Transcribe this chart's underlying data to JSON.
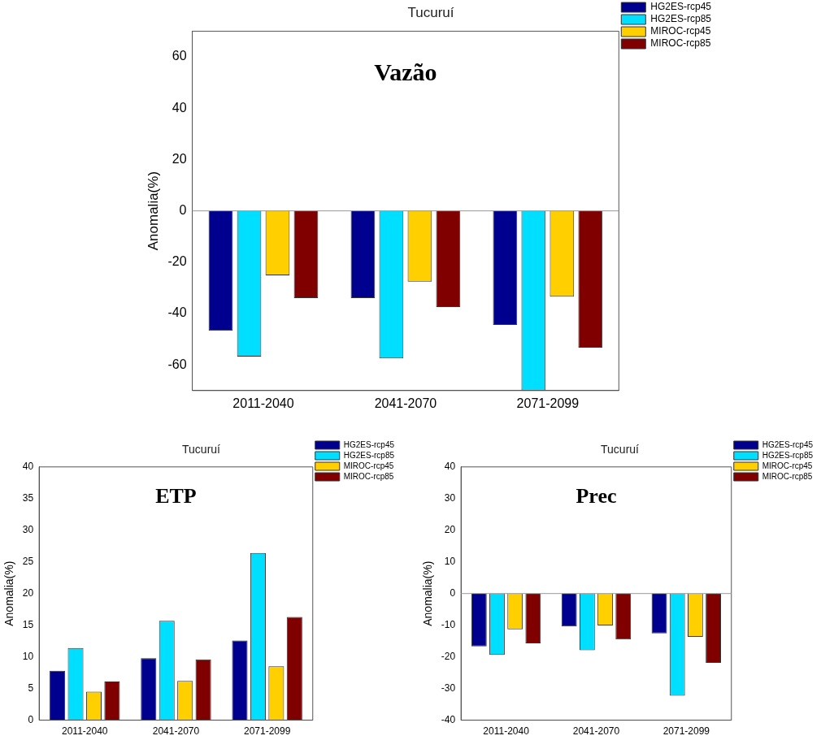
{
  "chart_data": [
    {
      "type": "bar",
      "title": "Tucuruí",
      "ylabel": "Anomalia(%)",
      "annotations": [
        "Vazão"
      ],
      "categories": [
        "2011-2040",
        "2041-2070",
        "2071-2099"
      ],
      "series": [
        {
          "name": "HG2ES-rcp45",
          "color": "#00008f",
          "values": [
            -46.7,
            -34,
            -44.4
          ]
        },
        {
          "name": "HG2ES-rcp85",
          "color": "#00dfff",
          "values": [
            -56.8,
            -57.5,
            -70
          ]
        },
        {
          "name": "MIROC-rcp45",
          "color": "#ffcf00",
          "values": [
            -25.1,
            -27.6,
            -33.4
          ]
        },
        {
          "name": "MIROC-rcp85",
          "color": "#800000",
          "values": [
            -34,
            -37.5,
            -53.3
          ]
        }
      ],
      "ylim": [
        -70,
        70
      ],
      "yticks": [
        -60,
        -40,
        -20,
        0,
        20,
        40,
        60
      ],
      "ref_lines": [
        {
          "axis": "y",
          "value": 0,
          "color": "#999999"
        }
      ],
      "grid": false,
      "legend": "top right"
    },
    {
      "type": "bar",
      "title": "Tucuruí",
      "ylabel": "Anomalia(%)",
      "annotations": [
        "ETP"
      ],
      "categories": [
        "2011-2040",
        "2041-2070",
        "2071-2099"
      ],
      "series": [
        {
          "name": "HG2ES-rcp45",
          "color": "#00008f",
          "values": [
            7.8,
            9.8,
            12.6
          ]
        },
        {
          "name": "HG2ES-rcp85",
          "color": "#00dfff",
          "values": [
            11.4,
            15.7,
            26.4
          ]
        },
        {
          "name": "MIROC-rcp45",
          "color": "#ffcf00",
          "values": [
            4.5,
            6.2,
            8.5
          ]
        },
        {
          "name": "MIROC-rcp85",
          "color": "#800000",
          "values": [
            6.1,
            9.6,
            16.3
          ]
        }
      ],
      "ylim": [
        0,
        40
      ],
      "yticks": [
        0,
        5,
        10,
        15,
        20,
        25,
        30,
        35,
        40
      ],
      "grid": false,
      "legend": "top right"
    },
    {
      "type": "bar",
      "title": "Tucuruí",
      "ylabel": "Anomalia(%)",
      "annotations": [
        "Prec"
      ],
      "categories": [
        "2011-2040",
        "2041-2070",
        "2071-2099"
      ],
      "series": [
        {
          "name": "HG2ES-rcp45",
          "color": "#00008f",
          "values": [
            -16.7,
            -10.4,
            -12.6
          ]
        },
        {
          "name": "HG2ES-rcp85",
          "color": "#00dfff",
          "values": [
            -19.4,
            -17.9,
            -32.3
          ]
        },
        {
          "name": "MIROC-rcp45",
          "color": "#ffcf00",
          "values": [
            -11.3,
            -10.1,
            -13.7
          ]
        },
        {
          "name": "MIROC-rcp85",
          "color": "#800000",
          "values": [
            -15.7,
            -14.5,
            -21.9
          ]
        }
      ],
      "ylim": [
        -40,
        40
      ],
      "yticks": [
        -40,
        -30,
        -20,
        -10,
        0,
        10,
        20,
        30,
        40
      ],
      "ref_lines": [
        {
          "axis": "y",
          "value": 0,
          "color": "#999999"
        }
      ],
      "grid": false,
      "legend": "top right"
    }
  ]
}
